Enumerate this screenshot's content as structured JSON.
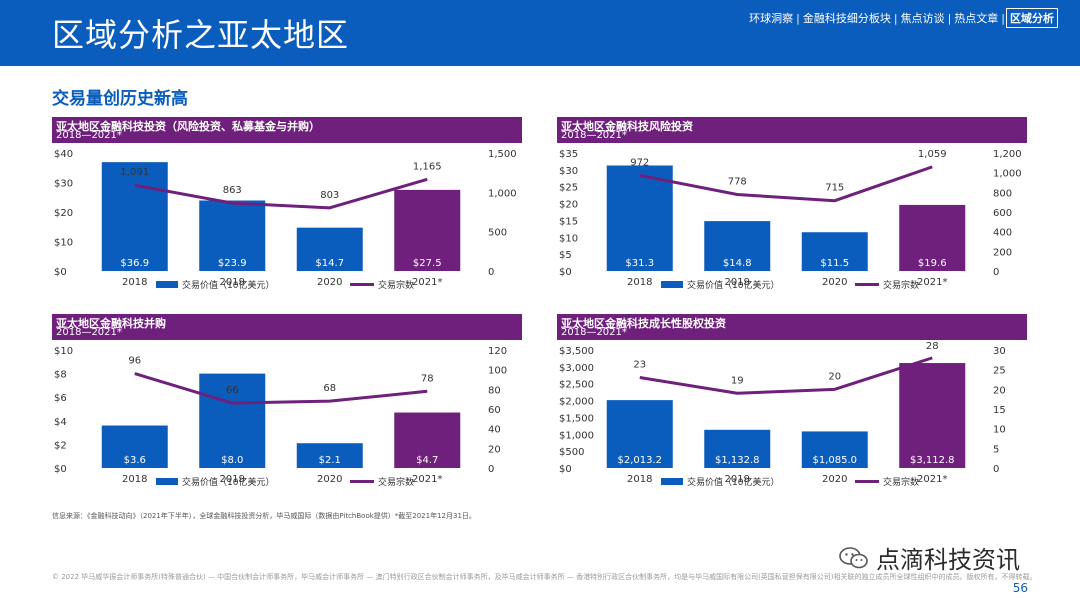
{
  "header": {
    "title": "区域分析之亚太地区",
    "nav": [
      "环球洞察",
      "金融科技细分板块",
      "焦点访谈",
      "热点文章",
      "区域分析"
    ],
    "nav_active_index": 4
  },
  "subtitle": "交易量创历史新高",
  "colors": {
    "header": "#0b5dbd",
    "panel_head": "#6f1f7c",
    "bar_blue": "#0b5dbd",
    "bar_purple": "#6f1f7c",
    "line": "#6f1f7c"
  },
  "chart_data": [
    {
      "type": "bar",
      "title": "亚太地区金融科技投资（风险投资、私募基金与并购）",
      "subtitle": "2018—2021*",
      "categories": [
        "2018",
        "2019",
        "2020",
        "2021*"
      ],
      "bar_series": {
        "name": "交易价值（10亿美元）",
        "values": [
          36.9,
          23.9,
          14.7,
          27.5
        ],
        "labels": [
          "$36.9",
          "$23.9",
          "$14.7",
          "$27.5"
        ]
      },
      "line_series": {
        "name": "交易宗数",
        "values": [
          1091,
          863,
          803,
          1165
        ],
        "labels": [
          "1,091",
          "863",
          "803",
          "1,165"
        ]
      },
      "y_left": {
        "min": 0,
        "max": 40,
        "ticks": [
          "$0",
          "$10",
          "$20",
          "$30",
          "$40"
        ]
      },
      "y_right": {
        "min": 0,
        "max": 1500,
        "ticks": [
          "0",
          "500",
          "1,000",
          "1,500"
        ]
      },
      "bar_colors": [
        "#0b5dbd",
        "#0b5dbd",
        "#0b5dbd",
        "#6f1f7c"
      ]
    },
    {
      "type": "bar",
      "title": "亚太地区金融科技风险投资",
      "subtitle": "2018—2021*",
      "categories": [
        "2018",
        "2019",
        "2020",
        "2021*"
      ],
      "bar_series": {
        "name": "交易价值（10亿美元）",
        "values": [
          31.3,
          14.8,
          11.5,
          19.6
        ],
        "labels": [
          "$31.3",
          "$14.8",
          "$11.5",
          "$19.6"
        ]
      },
      "line_series": {
        "name": "交易宗数",
        "values": [
          972,
          778,
          715,
          1059
        ],
        "labels": [
          "972",
          "778",
          "715",
          "1,059"
        ]
      },
      "y_left": {
        "min": 0,
        "max": 35,
        "ticks": [
          "$0",
          "$5",
          "$10",
          "$15",
          "$20",
          "$25",
          "$30",
          "$35"
        ]
      },
      "y_right": {
        "min": 0,
        "max": 1200,
        "ticks": [
          "0",
          "200",
          "400",
          "600",
          "800",
          "1,000",
          "1,200"
        ]
      },
      "bar_colors": [
        "#0b5dbd",
        "#0b5dbd",
        "#0b5dbd",
        "#6f1f7c"
      ]
    },
    {
      "type": "bar",
      "title": "亚太地区金融科技并购",
      "subtitle": "2018—2021*",
      "categories": [
        "2018",
        "2019",
        "2020",
        "2021*"
      ],
      "bar_series": {
        "name": "交易价值（10亿美元）",
        "values": [
          3.6,
          8.0,
          2.1,
          4.7
        ],
        "labels": [
          "$3.6",
          "$8.0",
          "$2.1",
          "$4.7"
        ]
      },
      "line_series": {
        "name": "交易宗数",
        "values": [
          96,
          66,
          68,
          78
        ],
        "labels": [
          "96",
          "66",
          "68",
          "78"
        ]
      },
      "y_left": {
        "min": 0,
        "max": 10,
        "ticks": [
          "$0",
          "$2",
          "$4",
          "$6",
          "$8",
          "$10"
        ]
      },
      "y_right": {
        "min": 0,
        "max": 120,
        "ticks": [
          "0",
          "20",
          "40",
          "60",
          "80",
          "100",
          "120"
        ]
      },
      "bar_colors": [
        "#0b5dbd",
        "#0b5dbd",
        "#0b5dbd",
        "#6f1f7c"
      ]
    },
    {
      "type": "bar",
      "title": "亚太地区金融科技成长性股权投资",
      "subtitle": "2018—2021*",
      "categories": [
        "2018",
        "2019",
        "2020",
        "2021*"
      ],
      "bar_series": {
        "name": "交易价值（10亿美元）",
        "values": [
          2013.2,
          1132.8,
          1085.0,
          3112.8
        ],
        "labels": [
          "$2,013.2",
          "$1,132.8",
          "$1,085.0",
          "$3,112.8"
        ]
      },
      "line_series": {
        "name": "交易宗数",
        "values": [
          23,
          19,
          20,
          28
        ],
        "labels": [
          "23",
          "19",
          "20",
          "28"
        ]
      },
      "y_left": {
        "min": 0,
        "max": 3500,
        "ticks": [
          "$0",
          "$500",
          "$1,000",
          "$1,500",
          "$2,000",
          "$2,500",
          "$3,000",
          "$3,500"
        ]
      },
      "y_right": {
        "min": 0,
        "max": 30,
        "ticks": [
          "0",
          "5",
          "10",
          "15",
          "20",
          "25",
          "30"
        ]
      },
      "bar_colors": [
        "#0b5dbd",
        "#0b5dbd",
        "#0b5dbd",
        "#6f1f7c"
      ]
    }
  ],
  "source": "信息来源：《金融科技动向》（2021年下半年），全球金融科技投资分析，毕马威国际（数据由PitchBook提供）*截至2021年12月31日。",
  "footer": "© 2022 毕马威华振会计师事务所(特殊普通合伙) — 中国合伙制会计师事务所，毕马威会计师事务所 — 澳门特别行政区合伙制会计师事务所，及毕马威会计师事务所 — 香港特别行政区合伙制事务所，均是与毕马威国际有限公司(英国私营担保有限公司)相关联的独立成员所全球性组织中的成员。版权所有，不得转载。",
  "wechat_brand": "点滴科技资讯",
  "page_number": "56"
}
